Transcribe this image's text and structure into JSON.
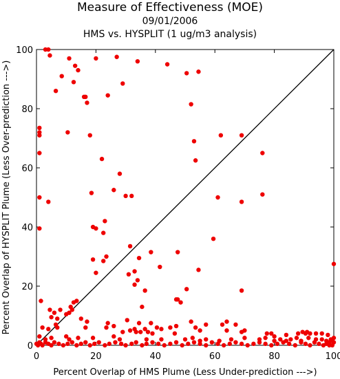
{
  "chart_data": {
    "type": "scatter",
    "title": "Measure of Effectiveness (MOE)",
    "date": "09/01/2006",
    "subtitle": "HMS vs. HYSPLIT  (1 ug/m3 analysis)",
    "xlabel": "Percent Overlap of HMS Plume (Less Under-prediction --->)",
    "ylabel": "Percent Overlap of HYSPLIT Plume (Less Over-prediction --->)",
    "xlim": [
      0,
      100
    ],
    "ylim": [
      0,
      100
    ],
    "x_ticks": [
      "0",
      "20",
      "40",
      "60",
      "80",
      "100"
    ],
    "y_ticks": [
      "0",
      "20",
      "40",
      "60",
      "80",
      "100"
    ],
    "reference_line": {
      "x": [
        0,
        100
      ],
      "y": [
        0,
        100
      ]
    },
    "point_color": "#ee0000",
    "series": [
      {
        "points": [
          [
            3,
            100
          ],
          [
            4,
            100
          ],
          [
            4.5,
            98
          ],
          [
            11,
            97
          ],
          [
            13,
            94.5
          ],
          [
            20,
            97
          ],
          [
            27,
            97.5
          ],
          [
            34,
            96
          ],
          [
            44,
            95
          ],
          [
            50.5,
            92
          ],
          [
            54.5,
            92.5
          ],
          [
            8.5,
            91
          ],
          [
            12.5,
            89
          ],
          [
            14,
            93
          ],
          [
            29,
            88.5
          ],
          [
            6.5,
            86
          ],
          [
            24,
            84.5
          ],
          [
            16,
            84
          ],
          [
            16.5,
            84
          ],
          [
            17,
            82
          ],
          [
            52,
            81.5
          ],
          [
            1,
            73.5
          ],
          [
            1,
            72
          ],
          [
            1,
            71
          ],
          [
            10.5,
            72
          ],
          [
            18,
            71
          ],
          [
            62,
            71
          ],
          [
            69,
            71
          ],
          [
            53,
            69
          ],
          [
            1,
            65
          ],
          [
            22,
            63
          ],
          [
            53.5,
            62.5
          ],
          [
            28,
            58
          ],
          [
            1,
            50
          ],
          [
            18.5,
            51.5
          ],
          [
            26,
            52.5
          ],
          [
            4,
            48.5
          ],
          [
            30,
            50.5
          ],
          [
            32,
            50.5
          ],
          [
            61,
            50
          ],
          [
            69,
            48.5
          ],
          [
            76,
            65
          ],
          [
            76,
            51
          ],
          [
            1,
            39.5
          ],
          [
            19,
            40
          ],
          [
            20,
            39.5
          ],
          [
            22.5,
            38
          ],
          [
            23,
            42
          ],
          [
            59.5,
            36
          ],
          [
            31.5,
            33.5
          ],
          [
            38.5,
            31.5
          ],
          [
            47.5,
            31.5
          ],
          [
            23.5,
            30
          ],
          [
            19,
            29
          ],
          [
            22.5,
            28.5
          ],
          [
            34.5,
            29.5
          ],
          [
            41.5,
            26.5
          ],
          [
            20,
            24.5
          ],
          [
            31,
            24
          ],
          [
            33,
            25
          ],
          [
            54.5,
            25.5
          ],
          [
            100,
            27.5
          ],
          [
            50.5,
            19
          ],
          [
            33,
            20.5
          ],
          [
            34,
            22
          ],
          [
            36.5,
            18.5
          ],
          [
            69,
            18.5
          ],
          [
            1.5,
            15
          ],
          [
            11.5,
            13
          ],
          [
            12.5,
            14.5
          ],
          [
            13.5,
            15
          ],
          [
            35.5,
            13
          ],
          [
            47,
            15.5
          ],
          [
            47.5,
            15.5
          ],
          [
            48.5,
            14.5
          ],
          [
            4.5,
            12
          ],
          [
            6,
            11
          ],
          [
            8,
            12
          ],
          [
            10,
            10.5
          ],
          [
            11,
            11
          ],
          [
            12,
            12
          ],
          [
            5,
            9.5
          ],
          [
            7,
            9
          ],
          [
            6.5,
            7
          ],
          [
            15,
            9
          ],
          [
            17,
            8
          ],
          [
            24,
            7.5
          ],
          [
            30.5,
            8.5
          ],
          [
            34.5,
            7.5
          ],
          [
            38.5,
            7.5
          ],
          [
            52,
            8
          ],
          [
            57,
            7
          ],
          [
            64,
            8
          ],
          [
            62.5,
            7
          ],
          [
            67,
            7
          ],
          [
            2,
            6
          ],
          [
            4,
            5.5
          ],
          [
            7,
            6
          ],
          [
            16.5,
            6
          ],
          [
            23.5,
            6
          ],
          [
            26,
            6.5
          ],
          [
            33,
            5.5
          ],
          [
            36.5,
            5.5
          ],
          [
            40.5,
            6
          ],
          [
            42,
            5.5
          ],
          [
            45,
            6
          ],
          [
            47,
            6.5
          ],
          [
            53.5,
            6
          ],
          [
            55,
            5
          ],
          [
            29,
            4.5
          ],
          [
            31.5,
            5
          ],
          [
            33.5,
            4.5
          ],
          [
            35,
            4.5
          ],
          [
            37.5,
            4.5
          ],
          [
            39,
            4
          ],
          [
            46.5,
            4
          ],
          [
            64,
            5
          ],
          [
            69,
            4.5
          ],
          [
            70,
            5
          ],
          [
            77.5,
            4
          ],
          [
            79,
            4
          ],
          [
            80,
            3
          ],
          [
            84,
            3.5
          ],
          [
            88,
            4
          ],
          [
            89.5,
            4.5
          ],
          [
            90.5,
            4
          ],
          [
            91,
            4.5
          ],
          [
            92,
            4
          ],
          [
            94,
            4
          ],
          [
            96,
            4
          ],
          [
            98,
            3.5
          ],
          [
            1,
            3
          ],
          [
            3,
            2
          ],
          [
            5,
            2.5
          ],
          [
            10,
            3
          ],
          [
            11,
            2
          ],
          [
            14,
            2.5
          ],
          [
            19,
            2.5
          ],
          [
            26,
            3
          ],
          [
            28,
            2
          ],
          [
            37,
            2
          ],
          [
            42,
            2
          ],
          [
            50,
            2
          ],
          [
            52.5,
            2.5
          ],
          [
            55,
            1.5
          ],
          [
            57,
            2
          ],
          [
            61.5,
            1.5
          ],
          [
            65.5,
            2
          ],
          [
            70,
            2.5
          ],
          [
            75,
            2
          ],
          [
            77,
            2.5
          ],
          [
            80,
            1.5
          ],
          [
            82,
            2
          ],
          [
            84,
            1.5
          ],
          [
            85.5,
            2
          ],
          [
            87.5,
            2.5
          ],
          [
            89,
            1.5
          ],
          [
            91.5,
            2.5
          ],
          [
            94,
            2
          ],
          [
            96,
            2
          ],
          [
            97.5,
            1.5
          ],
          [
            99,
            2
          ],
          [
            100,
            2.5
          ],
          [
            0,
            0.5
          ],
          [
            0.5,
            0
          ],
          [
            1,
            1
          ],
          [
            1.5,
            0.5
          ],
          [
            2,
            0
          ],
          [
            3,
            1
          ],
          [
            4,
            0.5
          ],
          [
            5,
            0
          ],
          [
            6,
            1
          ],
          [
            7.5,
            0.5
          ],
          [
            9,
            0
          ],
          [
            10.5,
            0.5
          ],
          [
            12,
            1
          ],
          [
            13.5,
            0
          ],
          [
            15,
            0.5
          ],
          [
            16.5,
            1
          ],
          [
            18,
            0
          ],
          [
            19.5,
            0.5
          ],
          [
            21,
            1
          ],
          [
            23,
            0
          ],
          [
            24.5,
            0.5
          ],
          [
            26.5,
            1
          ],
          [
            28.5,
            0.5
          ],
          [
            30,
            0
          ],
          [
            32,
            0.5
          ],
          [
            33.5,
            1
          ],
          [
            35.5,
            0
          ],
          [
            37,
            0.5
          ],
          [
            39,
            1
          ],
          [
            41,
            0.5
          ],
          [
            43,
            0
          ],
          [
            45,
            0.5
          ],
          [
            47,
            1
          ],
          [
            49,
            0
          ],
          [
            51,
            0.5
          ],
          [
            53,
            1
          ],
          [
            55,
            0.5
          ],
          [
            57,
            0
          ],
          [
            59,
            1
          ],
          [
            61,
            0.5
          ],
          [
            63,
            0
          ],
          [
            65,
            0.5
          ],
          [
            67,
            1
          ],
          [
            69,
            0.5
          ],
          [
            71,
            0
          ],
          [
            73,
            0.5
          ],
          [
            75,
            1
          ],
          [
            77,
            0.5
          ],
          [
            79,
            0
          ],
          [
            81,
            0.5
          ],
          [
            83,
            1
          ],
          [
            85,
            0.5
          ],
          [
            87,
            0
          ],
          [
            89,
            1
          ],
          [
            90.5,
            0.5
          ],
          [
            92,
            0
          ],
          [
            93.5,
            1
          ],
          [
            95,
            0.5
          ],
          [
            96.5,
            0
          ],
          [
            97.5,
            0.5
          ],
          [
            98.5,
            1
          ],
          [
            99.5,
            0
          ],
          [
            100,
            1
          ],
          [
            99.5,
            1.5
          ],
          [
            98.5,
            0
          ]
        ]
      }
    ]
  }
}
